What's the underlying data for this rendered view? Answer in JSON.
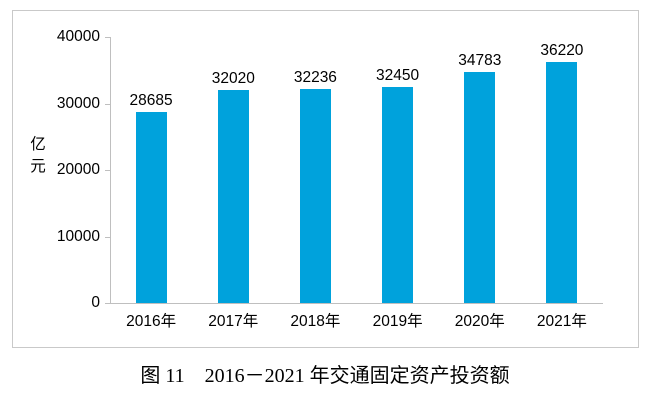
{
  "page": {
    "background": "#ffffff"
  },
  "figure": {
    "caption": "图 11　2016－2021 年交通固定资产投资额"
  },
  "chart_data": {
    "type": "bar",
    "title": "",
    "categories": [
      "2016年",
      "2017年",
      "2018年",
      "2019年",
      "2020年",
      "2021年"
    ],
    "values": [
      28685,
      32020,
      32236,
      32450,
      34783,
      36220
    ],
    "data_labels": [
      "28685",
      "32020",
      "32236",
      "32450",
      "34783",
      "36220"
    ],
    "xlabel": "",
    "ylabel": "亿元",
    "yticks": [
      0,
      10000,
      20000,
      30000,
      40000
    ],
    "ytick_labels": [
      "0",
      "10000",
      "20000",
      "30000",
      "40000"
    ],
    "ylim": [
      0,
      40000
    ],
    "grid": false,
    "legend": false,
    "bar_color": "#00a2dc",
    "axis_color": "#bfbfbf",
    "frame_border_color": "#c9c9c9",
    "text_color": "#000000"
  }
}
